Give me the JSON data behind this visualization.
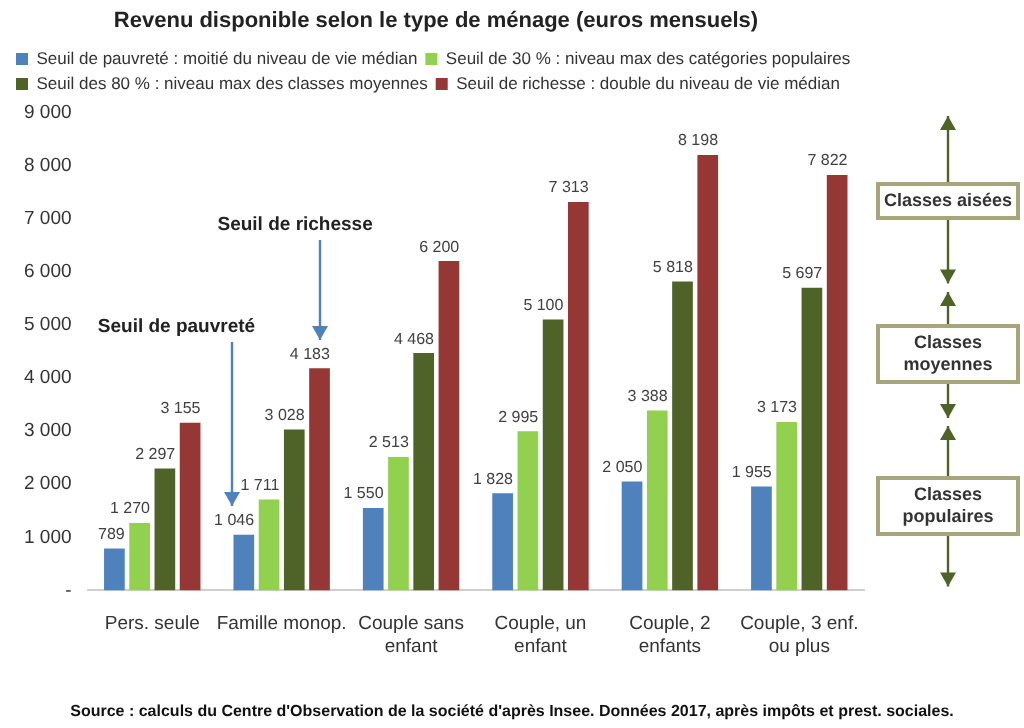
{
  "chart_data": {
    "type": "bar",
    "title": "Revenu disponible selon le type de ménage (euros mensuels)",
    "categories": [
      "Pers. seule",
      "Famille monop.",
      "Couple sans enfant",
      "Couple, un enfant",
      "Couple, 2 enfants",
      "Couple, 3 enf. ou plus"
    ],
    "series": [
      {
        "name": "Seuil de pauvreté : moitié du niveau de vie médian",
        "color": "#4f81bd",
        "values": [
          789,
          1046,
          1550,
          1828,
          2050,
          1955
        ]
      },
      {
        "name": "Seuil de 30 % : niveau max des catégories populaires",
        "color": "#92d050",
        "values": [
          1270,
          1711,
          2513,
          2995,
          3388,
          3173
        ]
      },
      {
        "name": "Seuil des 80 % : niveau max des classes moyennes",
        "color": "#4f6228",
        "values": [
          2297,
          3028,
          4468,
          5100,
          5818,
          5697
        ]
      },
      {
        "name": "Seuil de richesse : double du niveau de vie médian",
        "color": "#953735",
        "values": [
          3155,
          4183,
          6200,
          7313,
          8198,
          7822
        ]
      }
    ],
    "ylim": [
      0,
      9000
    ],
    "yticks": [
      {
        "value": 0,
        "label": "-"
      },
      {
        "value": 1000,
        "label": "1 000"
      },
      {
        "value": 2000,
        "label": "2 000"
      },
      {
        "value": 3000,
        "label": "3 000"
      },
      {
        "value": 4000,
        "label": "4 000"
      },
      {
        "value": 5000,
        "label": "5 000"
      },
      {
        "value": 6000,
        "label": "6 000"
      },
      {
        "value": 7000,
        "label": "7 000"
      },
      {
        "value": 8000,
        "label": "8 000"
      },
      {
        "value": 9000,
        "label": "9 000"
      }
    ],
    "grid": false,
    "legend": "top left",
    "data_labels": true,
    "annotations": [
      "Seuil de pauvreté",
      "Seuil de richesse",
      "Classes aisées",
      "Classes moyennes",
      "Classes populaires",
      "Source : calculs du Centre d'Observation de la société d'après Insee. Données 2017, après impôts et prest. sociales."
    ]
  }
}
